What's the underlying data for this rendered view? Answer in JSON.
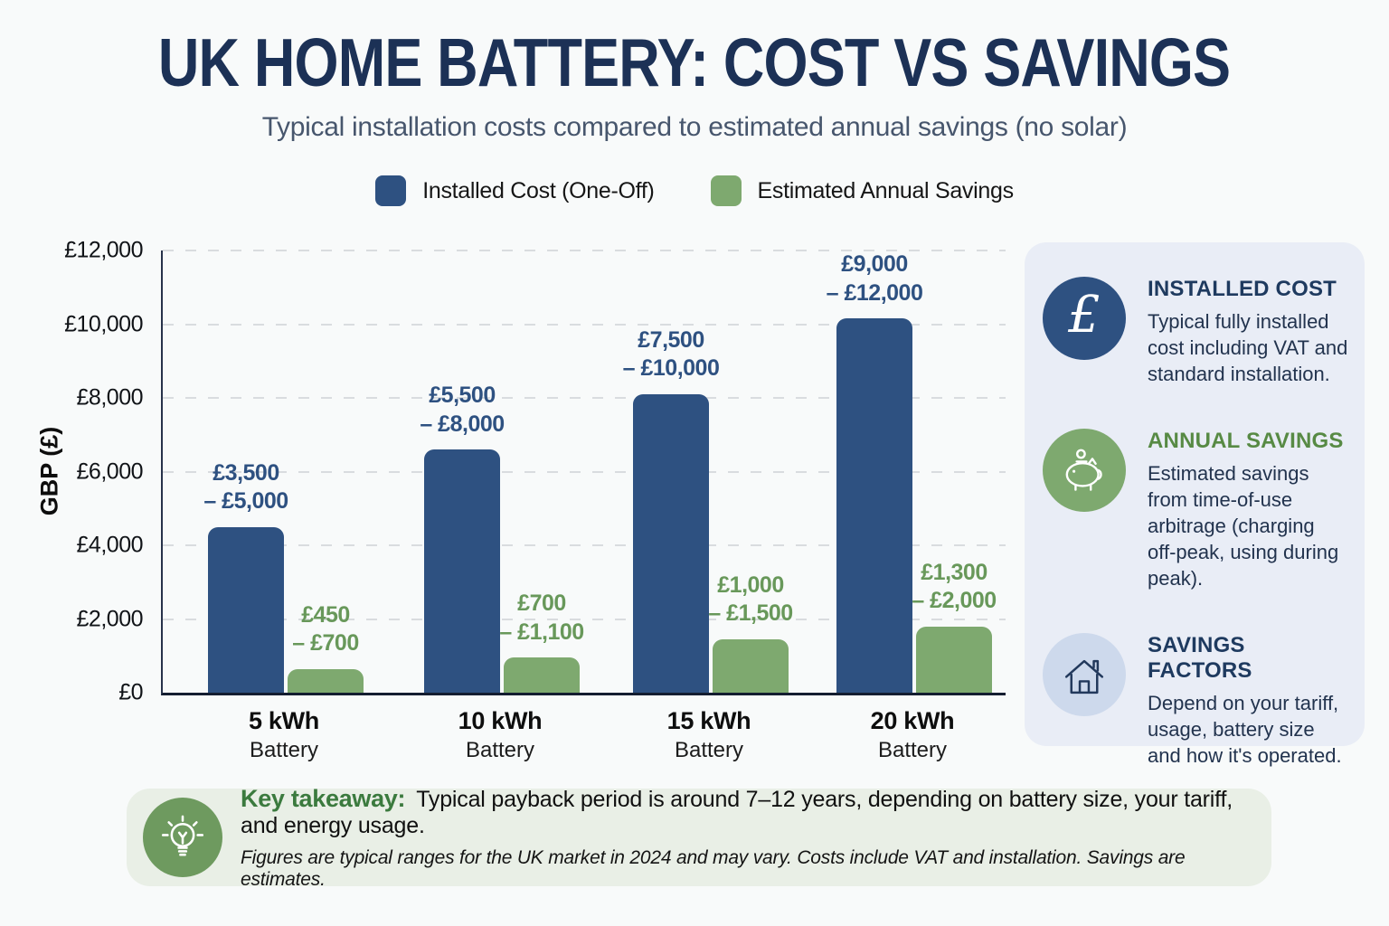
{
  "chart_data": {
    "type": "bar",
    "title": "UK HOME BATTERY: COST VS SAVINGS",
    "subtitle": "Typical installation costs compared to estimated annual savings (no solar)",
    "categories": [
      "5 kWh",
      "10 kWh",
      "15 kWh",
      "20 kWh"
    ],
    "category_subline": "Battery",
    "ylabel": "GBP (£)",
    "ylim": [
      0,
      12000
    ],
    "yticks": [
      0,
      2000,
      4000,
      6000,
      8000,
      10000,
      12000
    ],
    "ytick_labels": [
      "£0",
      "£2,000",
      "£4,000",
      "£6,000",
      "£8,000",
      "£10,000",
      "£12,000"
    ],
    "grid": "horizontal dashed",
    "legend_position": "top",
    "series": [
      {
        "name": "Installed Cost (One-Off)",
        "color": "#2e5181",
        "label_color": "#2e5181",
        "values": [
          4500,
          6600,
          8100,
          10150
        ],
        "ranges_gbp": [
          [
            3500,
            5000
          ],
          [
            5500,
            8000
          ],
          [
            7500,
            10000
          ],
          [
            9000,
            12000
          ]
        ],
        "range_labels": [
          [
            "£3,500",
            "– £5,000"
          ],
          [
            "£5,500",
            "– £8,000"
          ],
          [
            "£7,500",
            "– £10,000"
          ],
          [
            "£9,000",
            "– £12,000"
          ]
        ]
      },
      {
        "name": "Estimated Annual Savings",
        "color": "#7ea96f",
        "label_color": "#68985a",
        "values": [
          650,
          950,
          1450,
          1800
        ],
        "ranges_gbp": [
          [
            450,
            700
          ],
          [
            700,
            1100
          ],
          [
            1000,
            1500
          ],
          [
            1300,
            2000
          ]
        ],
        "range_labels": [
          [
            "£450",
            "– £700"
          ],
          [
            "£700",
            "– £1,100"
          ],
          [
            "£1,000",
            "– £1,500"
          ],
          [
            "£1,300",
            "– £2,000"
          ]
        ]
      }
    ]
  },
  "info_panel": {
    "cards": [
      {
        "heading": "INSTALLED COST",
        "heading_color": "#1e3a5f",
        "icon": "pound-icon",
        "icon_bg": "#2e5181",
        "body": "Typical fully installed cost including VAT and standard installation."
      },
      {
        "heading": "ANNUAL SAVINGS",
        "heading_color": "#578a44",
        "icon": "piggy-bank-icon",
        "icon_bg": "#7ea96f",
        "body": "Estimated savings from time-of-use arbitrage (charging off-peak, using during peak)."
      },
      {
        "heading": "SAVINGS FACTORS",
        "heading_color": "#1e3a5f",
        "icon": "house-icon",
        "icon_bg": "#cdd9ec",
        "body": "Depend on your tariff, usage, battery size and how it's operated."
      }
    ]
  },
  "footer": {
    "heading": "Key takeaway:",
    "body": "Typical payback period is around 7–12 years, depending on battery size, your tariff, and energy usage.",
    "footnote": "Figures are typical ranges for the UK market in 2024 and may vary. Costs include VAT and installation. Savings are estimates.",
    "icon": "lightbulb-icon",
    "icon_bg": "#6e9a5f"
  }
}
